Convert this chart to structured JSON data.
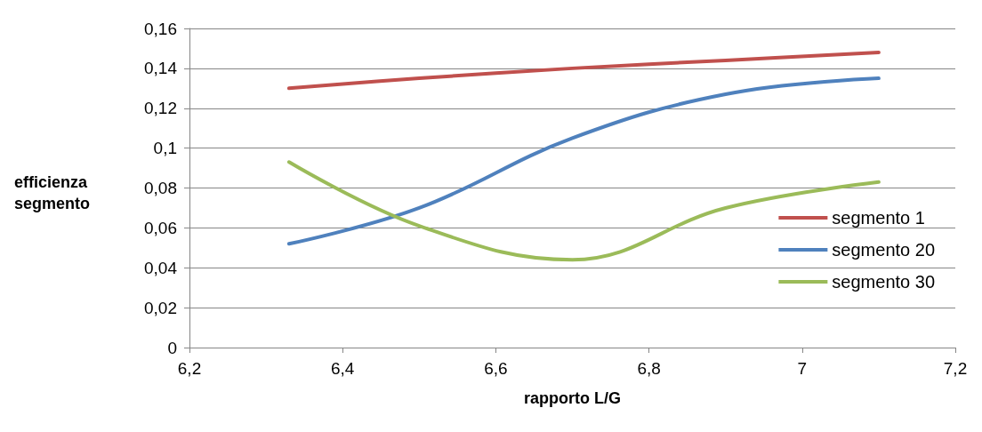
{
  "chart_data": {
    "type": "line",
    "xlabel": "rapporto L/G",
    "ylabel": "efficienza\nsegmento",
    "x": [
      6.33,
      6.5,
      6.7,
      6.9,
      7.1
    ],
    "series": [
      {
        "name": "segmento 1",
        "color": "#c0504d",
        "values": [
          0.13,
          0.135,
          0.14,
          0.144,
          0.148
        ]
      },
      {
        "name": "segmento 20",
        "color": "#4f81bd",
        "values": [
          0.052,
          0.07,
          0.105,
          0.127,
          0.135
        ]
      },
      {
        "name": "segmento 30",
        "color": "#9bbb59",
        "values": [
          0.093,
          0.061,
          0.044,
          0.07,
          0.083
        ]
      }
    ],
    "xlim": [
      6.2,
      7.2
    ],
    "xticks": [
      {
        "value": 6.2,
        "label": "6,2"
      },
      {
        "value": 6.4,
        "label": "6,4"
      },
      {
        "value": 6.6,
        "label": "6,6"
      },
      {
        "value": 6.8,
        "label": "6,8"
      },
      7,
      {
        "value": 7.2,
        "label": "7,2"
      }
    ],
    "ylim": [
      0,
      0.16
    ],
    "yticks": [
      0,
      {
        "value": 0.02,
        "label": "0,02"
      },
      {
        "value": 0.04,
        "label": "0,04"
      },
      {
        "value": 0.06,
        "label": "0,06"
      },
      {
        "value": 0.08,
        "label": "0,08"
      },
      {
        "value": 0.1,
        "label": "0,1"
      },
      {
        "value": 0.12,
        "label": "0,12"
      },
      {
        "value": 0.14,
        "label": "0,14"
      },
      {
        "value": 0.16,
        "label": "0,16"
      }
    ],
    "grid": "y",
    "legend": "right",
    "marker": "none",
    "line_style": "solid"
  }
}
